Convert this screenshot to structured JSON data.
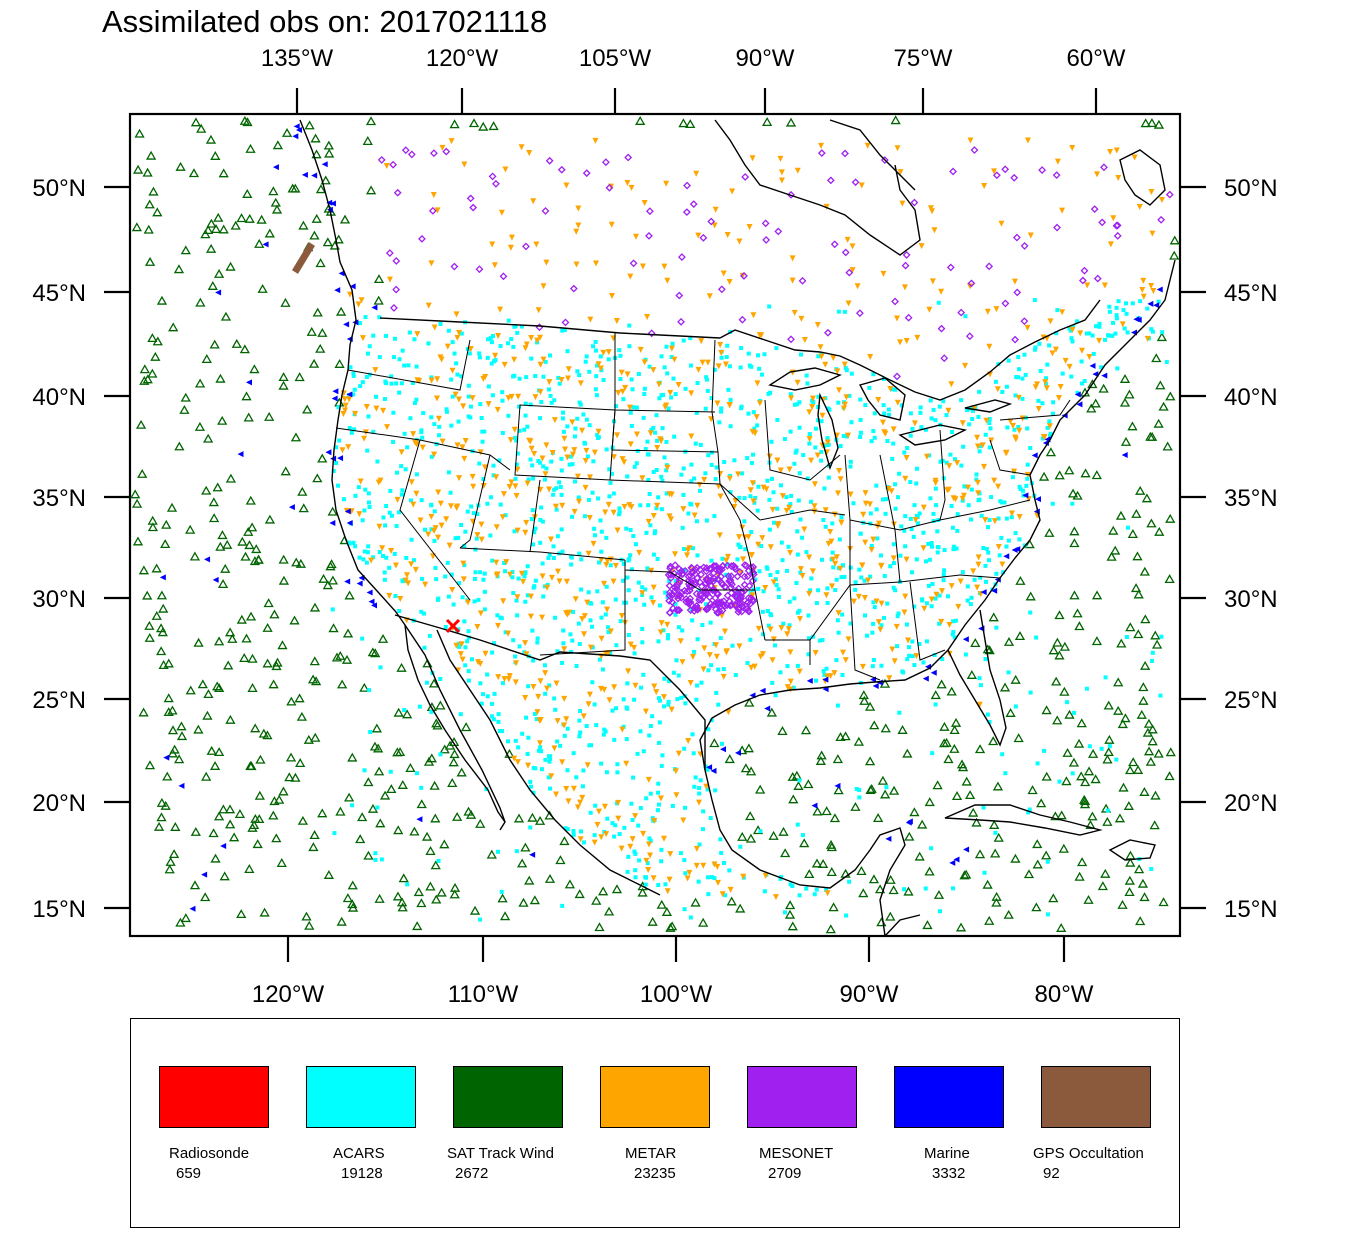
{
  "title": "Assimilated obs on: 2017021118",
  "map": {
    "top_lon_labels": [
      "135°W",
      "120°W",
      "105°W",
      "90°W",
      "75°W",
      "60°W"
    ],
    "bottom_lon_labels": [
      "120°W",
      "110°W",
      "100°W",
      "90°W",
      "80°W"
    ],
    "lat_labels": [
      "50°N",
      "45°N",
      "40°N",
      "35°N",
      "30°N",
      "25°N",
      "20°N",
      "15°N"
    ],
    "frame_color": "#000000",
    "ocean_color": "#ffffff",
    "coastline_color": "#000000"
  },
  "legend": {
    "items": [
      {
        "name": "Radiosonde",
        "count": "659",
        "color": "#ff0000",
        "marker": "x"
      },
      {
        "name": "ACARS",
        "count": "19128",
        "color": "#00ffff",
        "marker": "square"
      },
      {
        "name": "SAT Track Wind",
        "count": "2672",
        "color": "#006400",
        "marker": "triangle-up"
      },
      {
        "name": "METAR",
        "count": "23235",
        "color": "#ffa500",
        "marker": "triangle-down"
      },
      {
        "name": "MESONET",
        "count": "2709",
        "color": "#a020f0",
        "marker": "diamond"
      },
      {
        "name": "Marine",
        "count": "3332",
        "color": "#0000ff",
        "marker": "triangle-left"
      },
      {
        "name": "GPS Occultation",
        "count": "92",
        "color": "#8b5a3c",
        "marker": "line"
      }
    ]
  }
}
